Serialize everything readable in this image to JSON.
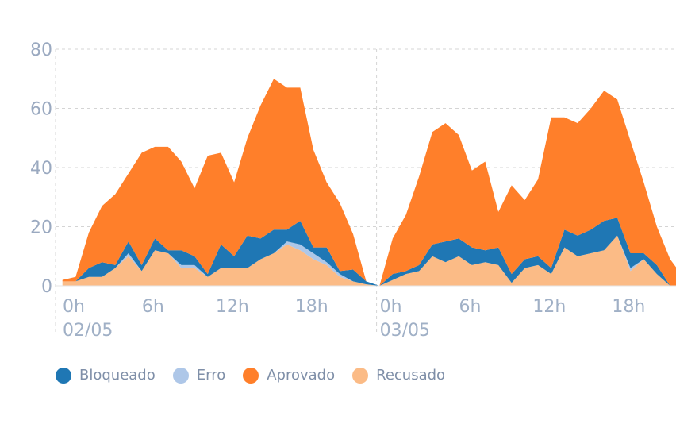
{
  "chart_data": {
    "type": "area",
    "stacked": true,
    "ylim": [
      0,
      80
    ],
    "yticks": [
      0,
      20,
      40,
      60,
      80
    ],
    "grid": true,
    "legend_position": "bottom-left",
    "xtick_labels": [
      {
        "hour": 0,
        "label": "0h",
        "date": "02/05"
      },
      {
        "hour": 6,
        "label": "6h"
      },
      {
        "hour": 12,
        "label": "12h"
      },
      {
        "hour": 18,
        "label": "18h"
      },
      {
        "hour": 24,
        "label": "0h",
        "date": "03/05"
      },
      {
        "hour": 30,
        "label": "6h"
      },
      {
        "hour": 36,
        "label": "12h"
      },
      {
        "hour": 42,
        "label": "18h"
      }
    ],
    "day_separator_hour": 24,
    "x": [
      -0.5,
      0.5,
      1.5,
      2.5,
      3.5,
      4.5,
      5.5,
      6.5,
      7.5,
      8.5,
      9.5,
      10.5,
      11.5,
      12.5,
      13.5,
      14.5,
      15.5,
      16.5,
      17.5,
      18.5,
      19.5,
      20.5,
      21.5,
      22.5,
      23.5,
      24.5,
      25.5,
      26.5,
      27.5,
      28.5,
      29.5,
      30.5,
      31.5,
      32.5,
      33.5,
      34.5,
      35.5,
      36.5,
      37.5,
      38.5,
      39.5,
      40.5,
      41.5,
      42.5,
      43.5,
      44.5,
      45.5,
      46.5,
      47.5
    ],
    "series": [
      {
        "name": "Recusado",
        "color": "#fbbb86",
        "values": [
          1.5,
          1.5,
          3,
          3,
          6,
          10,
          5,
          12,
          11,
          6,
          6,
          3,
          6,
          6,
          6,
          9,
          11,
          14,
          12,
          9,
          7,
          3,
          1.5,
          0.5,
          0,
          2,
          4,
          5,
          10,
          8,
          10,
          7,
          8,
          7,
          1,
          6,
          7,
          4,
          13,
          10,
          11,
          12,
          17,
          5,
          9,
          4,
          0,
          0,
          0
        ]
      },
      {
        "name": "Erro",
        "color": "#aec7e8",
        "values": [
          0,
          0,
          0,
          0,
          0,
          1,
          0,
          0,
          0,
          1,
          1,
          0,
          0,
          0,
          0,
          0,
          0,
          1,
          2,
          2,
          1,
          1,
          0,
          0,
          0,
          0,
          0,
          0,
          0,
          0,
          0,
          0,
          0,
          0,
          0,
          0,
          0,
          0,
          0,
          0,
          0,
          0,
          0,
          1,
          0,
          0,
          0,
          0,
          0
        ]
      },
      {
        "name": "Bloqueado",
        "color": "#1f77b4",
        "values": [
          0,
          0,
          3,
          5,
          1,
          4,
          2,
          4,
          1,
          5,
          3,
          1,
          8,
          4,
          11,
          7,
          8,
          4,
          8,
          2,
          5,
          1,
          4,
          1,
          0,
          2,
          1,
          2,
          4,
          7,
          6,
          6,
          4,
          6,
          3,
          3,
          3,
          2,
          6,
          7,
          8,
          10,
          6,
          5,
          2,
          3,
          0,
          0,
          0
        ]
      },
      {
        "name": "Aprovado",
        "color": "#ff7f2a",
        "values": [
          0.5,
          1.5,
          12,
          19,
          24,
          23,
          38,
          31,
          35,
          30,
          23,
          40,
          31,
          25,
          33,
          45,
          51,
          48,
          45,
          33,
          22,
          23,
          12,
          0,
          0,
          12,
          19,
          30,
          38,
          40,
          35,
          26,
          30,
          12,
          30,
          20,
          26,
          51,
          38,
          38,
          41,
          44,
          40,
          38,
          24,
          13,
          9,
          3,
          0
        ]
      }
    ],
    "legend": [
      "Bloqueado",
      "Erro",
      "Aprovado",
      "Recusado"
    ]
  }
}
